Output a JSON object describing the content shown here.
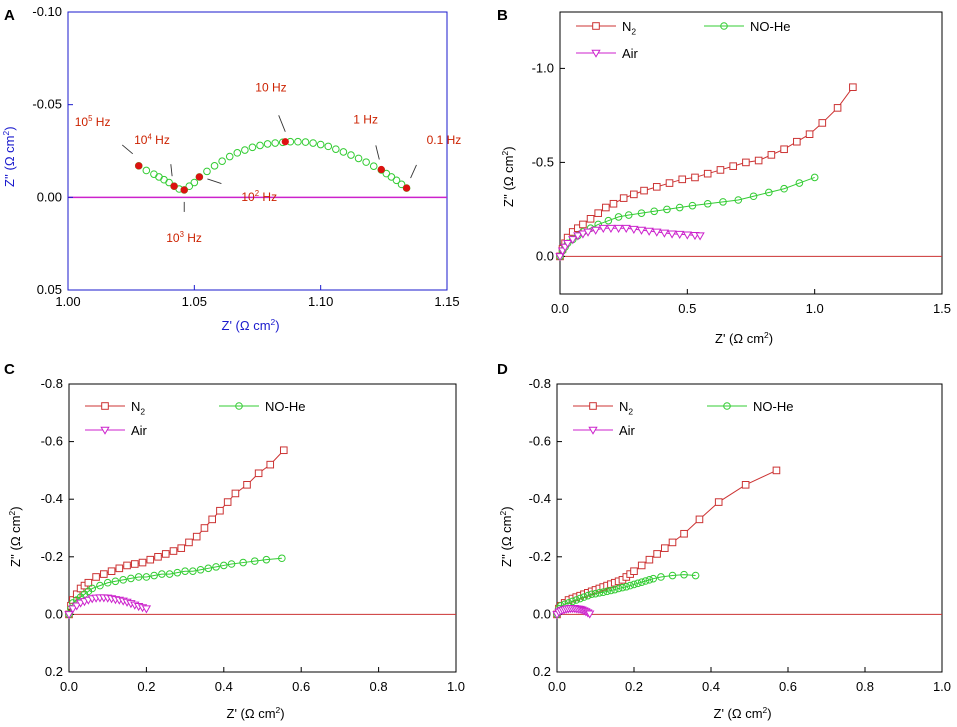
{
  "chart_data": [
    {
      "panel": "A",
      "type": "scatter",
      "xlabel": "Z' (Ω cm²)",
      "ylabel": "Z'' (Ω cm²)",
      "xlim": [
        1.0,
        1.15
      ],
      "ylim": [
        0.05,
        -0.1
      ],
      "xticks": [
        "1.00",
        "1.05",
        "1.10",
        "1.15"
      ],
      "yticks": [
        "-0.10",
        "-0.05",
        "0.00",
        "0.05"
      ],
      "axis_color": "#1a1acd",
      "zero_line_color": "#cc22cc",
      "series": [
        {
          "name": "NO-He",
          "color": "#33cc33",
          "marker": "circle",
          "x": [
            1.028,
            1.031,
            1.034,
            1.036,
            1.038,
            1.04,
            1.042,
            1.044,
            1.046,
            1.048,
            1.05,
            1.052,
            1.055,
            1.058,
            1.061,
            1.064,
            1.067,
            1.07,
            1.073,
            1.076,
            1.079,
            1.082,
            1.085,
            1.088,
            1.091,
            1.094,
            1.097,
            1.1,
            1.103,
            1.106,
            1.109,
            1.112,
            1.115,
            1.118,
            1.121,
            1.124,
            1.126,
            1.128,
            1.13,
            1.132,
            1.134
          ],
          "y": [
            -0.017,
            -0.0145,
            -0.0125,
            -0.011,
            -0.0095,
            -0.008,
            -0.006,
            -0.0045,
            -0.004,
            -0.006,
            -0.008,
            -0.011,
            -0.014,
            -0.017,
            -0.0195,
            -0.022,
            -0.024,
            -0.0255,
            -0.027,
            -0.028,
            -0.0288,
            -0.0293,
            -0.0297,
            -0.03,
            -0.03,
            -0.0298,
            -0.0293,
            -0.0285,
            -0.0275,
            -0.026,
            -0.0245,
            -0.0228,
            -0.021,
            -0.019,
            -0.0168,
            -0.0148,
            -0.0128,
            -0.011,
            -0.0092,
            -0.007,
            -0.005
          ]
        }
      ],
      "annotations": [
        {
          "label": "10⁵ Hz",
          "x": 1.028,
          "y": -0.017
        },
        {
          "label": "10⁴ Hz",
          "x": 1.042,
          "y": -0.006
        },
        {
          "label": "10³ Hz",
          "x": 1.046,
          "y": -0.004
        },
        {
          "label": "10² Hz",
          "x": 1.052,
          "y": -0.011
        },
        {
          "label": "10 Hz",
          "x": 1.086,
          "y": -0.03
        },
        {
          "label": "1 Hz",
          "x": 1.124,
          "y": -0.015
        },
        {
          "label": "0.1 Hz",
          "x": 1.134,
          "y": -0.005
        }
      ],
      "annotation_color": "#cc2200"
    },
    {
      "panel": "B",
      "type": "line",
      "xlabel": "Z' (Ω cm²)",
      "ylabel": "Z'' (Ω cm²)",
      "xlim": [
        0,
        1.5
      ],
      "ylim": [
        0.2,
        -1.3
      ],
      "xticks": [
        "0.0",
        "0.5",
        "1.0",
        "1.5"
      ],
      "yticks": [
        "-1.0",
        "-0.5",
        "0.0"
      ],
      "legend": [
        "N₂",
        "NO-He",
        "Air"
      ],
      "series": [
        {
          "name": "N2",
          "color": "#cc3333",
          "marker": "square",
          "x": [
            0.0,
            0.01,
            0.02,
            0.03,
            0.05,
            0.07,
            0.09,
            0.12,
            0.15,
            0.18,
            0.21,
            0.25,
            0.29,
            0.33,
            0.38,
            0.43,
            0.48,
            0.53,
            0.58,
            0.63,
            0.68,
            0.73,
            0.78,
            0.83,
            0.88,
            0.93,
            0.98,
            1.03,
            1.09,
            1.15
          ],
          "y": [
            0.0,
            -0.04,
            -0.07,
            -0.1,
            -0.13,
            -0.15,
            -0.17,
            -0.2,
            -0.23,
            -0.26,
            -0.28,
            -0.31,
            -0.33,
            -0.35,
            -0.37,
            -0.39,
            -0.41,
            -0.42,
            -0.44,
            -0.46,
            -0.48,
            -0.5,
            -0.51,
            -0.54,
            -0.57,
            -0.61,
            -0.65,
            -0.71,
            -0.79,
            -0.9
          ]
        },
        {
          "name": "NO-He",
          "color": "#33cc33",
          "marker": "circle",
          "x": [
            0.0,
            0.01,
            0.02,
            0.03,
            0.05,
            0.07,
            0.09,
            0.12,
            0.15,
            0.19,
            0.23,
            0.27,
            0.32,
            0.37,
            0.42,
            0.47,
            0.52,
            0.58,
            0.64,
            0.7,
            0.76,
            0.82,
            0.88,
            0.94,
            1.0
          ],
          "y": [
            0.0,
            -0.03,
            -0.05,
            -0.07,
            -0.09,
            -0.11,
            -0.13,
            -0.15,
            -0.17,
            -0.19,
            -0.21,
            -0.22,
            -0.23,
            -0.24,
            -0.25,
            -0.26,
            -0.27,
            -0.28,
            -0.29,
            -0.3,
            -0.32,
            -0.34,
            -0.36,
            -0.39,
            -0.42
          ]
        },
        {
          "name": "Air",
          "color": "#cc22cc",
          "marker": "triangle-down",
          "x": [
            0.0,
            0.01,
            0.02,
            0.03,
            0.05,
            0.07,
            0.09,
            0.11,
            0.14,
            0.17,
            0.2,
            0.23,
            0.26,
            0.29,
            0.32,
            0.35,
            0.38,
            0.41,
            0.44,
            0.47,
            0.5,
            0.53,
            0.55
          ],
          "y": [
            0.0,
            -0.03,
            -0.05,
            -0.07,
            -0.09,
            -0.11,
            -0.12,
            -0.13,
            -0.14,
            -0.15,
            -0.15,
            -0.15,
            -0.15,
            -0.145,
            -0.14,
            -0.135,
            -0.13,
            -0.125,
            -0.12,
            -0.118,
            -0.115,
            -0.112,
            -0.11
          ]
        }
      ]
    },
    {
      "panel": "C",
      "type": "line",
      "xlabel": "Z' (Ω cm²)",
      "ylabel": "Z'' (Ω cm²)",
      "xlim": [
        0,
        1.0
      ],
      "ylim": [
        0.2,
        -0.8
      ],
      "xticks": [
        "0.0",
        "0.2",
        "0.4",
        "0.6",
        "0.8",
        "1.0"
      ],
      "yticks": [
        "-0.8",
        "-0.6",
        "-0.4",
        "-0.2",
        "0.0",
        "0.2"
      ],
      "legend": [
        "N₂",
        "NO-He",
        "Air"
      ],
      "series": [
        {
          "name": "N2",
          "color": "#cc3333",
          "marker": "square",
          "x": [
            0.0,
            0.005,
            0.01,
            0.02,
            0.03,
            0.04,
            0.05,
            0.07,
            0.09,
            0.11,
            0.13,
            0.15,
            0.17,
            0.19,
            0.21,
            0.23,
            0.25,
            0.27,
            0.29,
            0.31,
            0.33,
            0.35,
            0.37,
            0.39,
            0.41,
            0.43,
            0.46,
            0.49,
            0.52,
            0.555
          ],
          "y": [
            0.0,
            -0.03,
            -0.05,
            -0.07,
            -0.09,
            -0.1,
            -0.11,
            -0.13,
            -0.14,
            -0.15,
            -0.16,
            -0.17,
            -0.175,
            -0.18,
            -0.19,
            -0.2,
            -0.21,
            -0.22,
            -0.23,
            -0.25,
            -0.27,
            -0.3,
            -0.33,
            -0.36,
            -0.39,
            -0.42,
            -0.45,
            -0.49,
            -0.52,
            -0.57
          ]
        },
        {
          "name": "NO-He",
          "color": "#33cc33",
          "marker": "circle",
          "x": [
            0.0,
            0.005,
            0.01,
            0.02,
            0.03,
            0.04,
            0.05,
            0.06,
            0.08,
            0.1,
            0.12,
            0.14,
            0.16,
            0.18,
            0.2,
            0.22,
            0.24,
            0.26,
            0.28,
            0.3,
            0.32,
            0.34,
            0.36,
            0.38,
            0.4,
            0.42,
            0.45,
            0.48,
            0.51,
            0.55
          ],
          "y": [
            0.0,
            -0.02,
            -0.04,
            -0.05,
            -0.06,
            -0.07,
            -0.08,
            -0.09,
            -0.1,
            -0.11,
            -0.115,
            -0.12,
            -0.125,
            -0.13,
            -0.13,
            -0.135,
            -0.14,
            -0.14,
            -0.145,
            -0.15,
            -0.15,
            -0.155,
            -0.16,
            -0.165,
            -0.17,
            -0.175,
            -0.18,
            -0.185,
            -0.19,
            -0.195
          ]
        },
        {
          "name": "Air",
          "color": "#cc22cc",
          "marker": "triangle-down",
          "x": [
            0.0,
            0.01,
            0.02,
            0.03,
            0.04,
            0.05,
            0.06,
            0.07,
            0.08,
            0.09,
            0.1,
            0.11,
            0.12,
            0.13,
            0.14,
            0.15,
            0.16,
            0.17,
            0.18,
            0.19,
            0.2
          ],
          "y": [
            0.0,
            -0.02,
            -0.03,
            -0.04,
            -0.045,
            -0.05,
            -0.055,
            -0.057,
            -0.058,
            -0.058,
            -0.057,
            -0.055,
            -0.052,
            -0.05,
            -0.047,
            -0.043,
            -0.038,
            -0.033,
            -0.028,
            -0.024,
            -0.02
          ]
        }
      ]
    },
    {
      "panel": "D",
      "type": "line",
      "xlabel": "Z' (Ω cm²)",
      "ylabel": "Z'' (Ω cm²)",
      "xlim": [
        0,
        1.0
      ],
      "ylim": [
        0.2,
        -0.8
      ],
      "xticks": [
        "0.0",
        "0.2",
        "0.4",
        "0.6",
        "0.8",
        "1.0"
      ],
      "yticks": [
        "-0.8",
        "-0.6",
        "-0.4",
        "-0.2",
        "0.0",
        "0.2"
      ],
      "legend": [
        "N₂",
        "NO-He",
        "Air"
      ],
      "series": [
        {
          "name": "N2",
          "color": "#cc3333",
          "marker": "square",
          "x": [
            0.0,
            0.005,
            0.01,
            0.02,
            0.03,
            0.04,
            0.05,
            0.06,
            0.07,
            0.08,
            0.09,
            0.1,
            0.11,
            0.12,
            0.13,
            0.14,
            0.15,
            0.16,
            0.17,
            0.18,
            0.19,
            0.2,
            0.22,
            0.24,
            0.26,
            0.28,
            0.3,
            0.33,
            0.37,
            0.42,
            0.49,
            0.57
          ],
          "y": [
            0.0,
            -0.02,
            -0.03,
            -0.04,
            -0.05,
            -0.055,
            -0.06,
            -0.065,
            -0.07,
            -0.075,
            -0.08,
            -0.085,
            -0.09,
            -0.095,
            -0.1,
            -0.105,
            -0.11,
            -0.115,
            -0.12,
            -0.13,
            -0.14,
            -0.15,
            -0.17,
            -0.19,
            -0.21,
            -0.23,
            -0.25,
            -0.28,
            -0.33,
            -0.39,
            -0.45,
            -0.5
          ]
        },
        {
          "name": "NO-He",
          "color": "#33cc33",
          "marker": "circle",
          "x": [
            0.0,
            0.005,
            0.01,
            0.02,
            0.03,
            0.04,
            0.05,
            0.06,
            0.07,
            0.08,
            0.09,
            0.1,
            0.11,
            0.12,
            0.13,
            0.14,
            0.15,
            0.16,
            0.17,
            0.18,
            0.19,
            0.2,
            0.21,
            0.22,
            0.23,
            0.24,
            0.25,
            0.27,
            0.3,
            0.33,
            0.36
          ],
          "y": [
            0.0,
            -0.02,
            -0.03,
            -0.035,
            -0.04,
            -0.045,
            -0.05,
            -0.055,
            -0.06,
            -0.065,
            -0.07,
            -0.072,
            -0.075,
            -0.077,
            -0.08,
            -0.083,
            -0.086,
            -0.09,
            -0.093,
            -0.096,
            -0.1,
            -0.104,
            -0.108,
            -0.112,
            -0.116,
            -0.12,
            -0.124,
            -0.13,
            -0.135,
            -0.138,
            -0.135
          ]
        },
        {
          "name": "Air",
          "color": "#cc22cc",
          "marker": "triangle-down",
          "x": [
            0.0,
            0.005,
            0.01,
            0.015,
            0.02,
            0.025,
            0.03,
            0.035,
            0.04,
            0.045,
            0.05,
            0.055,
            0.06,
            0.065,
            0.07,
            0.075,
            0.08,
            0.085
          ],
          "y": [
            0.0,
            -0.008,
            -0.012,
            -0.015,
            -0.017,
            -0.019,
            -0.02,
            -0.021,
            -0.021,
            -0.021,
            -0.02,
            -0.019,
            -0.018,
            -0.016,
            -0.013,
            -0.01,
            -0.006,
            -0.002
          ]
        }
      ]
    }
  ]
}
